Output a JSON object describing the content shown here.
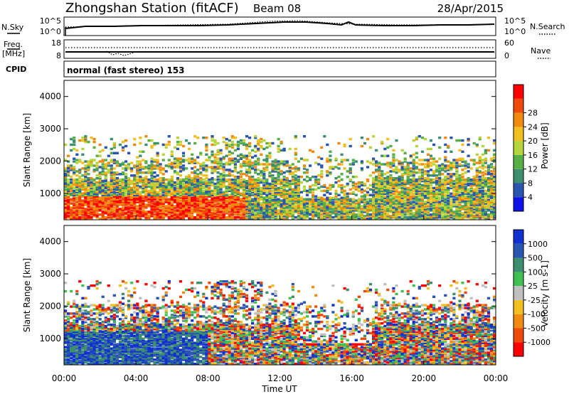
{
  "header": {
    "station": "Zhongshan Station (fitACF)",
    "beam": "Beam 08",
    "date": "28/Apr/2015"
  },
  "side_labels": {
    "nsky": "N.Sky",
    "freq_top": "Freq.",
    "freq_bottom": "[MHz]",
    "cpid": "CPID",
    "nsearch": "N.Search",
    "nave": "Nave"
  },
  "noise_panel": {
    "left_ticks": [
      "10^5",
      "10^0"
    ],
    "right_ticks": [
      "10^5",
      "10^0"
    ]
  },
  "freq_panel": {
    "left_ticks": [
      "18",
      "8"
    ],
    "right_ticks": [
      "60",
      "0"
    ]
  },
  "cpid_text": "normal (fast stereo) 153",
  "chart_data": [
    {
      "type": "heatmap",
      "panel": "power",
      "ylabel": "Slant Range [km]",
      "ylim": [
        180,
        4500
      ],
      "yticks": [
        1000,
        2000,
        3000,
        4000
      ],
      "xlim": [
        0,
        24
      ],
      "colorbar_label": "Power [dB]",
      "colorbar_ticks": [
        "4",
        "8",
        "12",
        "16",
        "20",
        "24",
        "28"
      ],
      "colors": [
        "#1010e8",
        "#2a55b0",
        "#3d8f6f",
        "#56b046",
        "#b4d53c",
        "#f0c020",
        "#f08a10",
        "#f04a0a",
        "#ff0000"
      ]
    },
    {
      "type": "heatmap",
      "panel": "velocity",
      "ylabel": "Slant Range [km]",
      "ylim": [
        180,
        4500
      ],
      "yticks": [
        1000,
        2000,
        3000,
        4000
      ],
      "xlim": [
        0,
        24
      ],
      "colorbar_label": "Velocity [m s-1]",
      "colorbar_ticks": [
        "1000",
        "500",
        "100",
        "25",
        "-25",
        "-100",
        "-500",
        "-1000"
      ],
      "colors": [
        "#1030d0",
        "#2a55b0",
        "#3d8f6f",
        "#40c050",
        "#c0c0c0",
        "#f0c020",
        "#f08a10",
        "#f04a0a",
        "#ff0000"
      ]
    }
  ],
  "time_axis": {
    "ticks": [
      "00:00",
      "04:00",
      "08:00",
      "12:00",
      "16:00",
      "20:00",
      "00:00"
    ],
    "label": "Time UT"
  }
}
